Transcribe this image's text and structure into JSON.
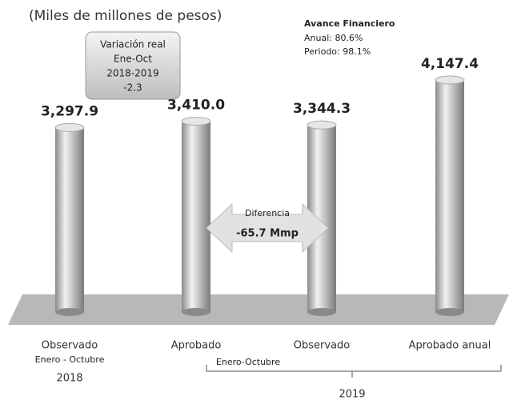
{
  "chart_data": {
    "type": "bar",
    "subtitle": "(Miles de millones de pesos)",
    "categories": [
      "Observado",
      "Aprobado",
      "Observado",
      "Aprobado anual"
    ],
    "values": [
      3297.9,
      3410.0,
      3344.3,
      4147.4
    ],
    "value_labels": [
      "3,297.9",
      "3,410.0",
      "3,344.3",
      "4,147.4"
    ],
    "color": "#b5b5b5",
    "avance": {
      "title": "Avance Financiero",
      "lines": [
        "Anual: 80.6%",
        "Periodo: 98.1%"
      ]
    },
    "variacion": [
      "Variación real",
      "Ene-Oct",
      "2018-2019",
      "-2.3"
    ],
    "diferencia": [
      "Diferencia",
      "-65.7 Mmp"
    ],
    "groups": [
      "Enero - Octubre",
      "2018",
      "Enero-Octubre",
      "2019"
    ]
  }
}
